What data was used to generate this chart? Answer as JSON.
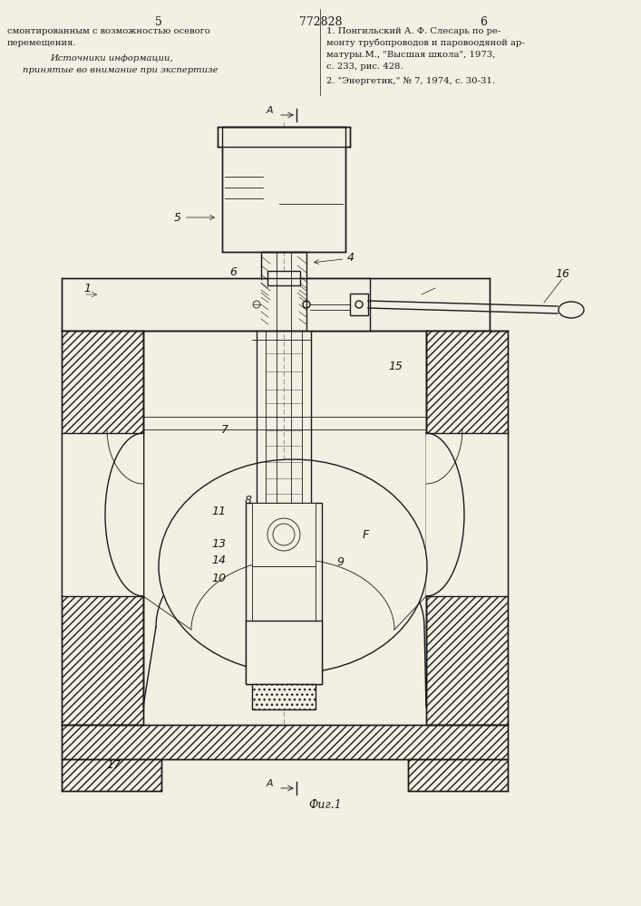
{
  "page_number_left": "5",
  "page_number_center": "772828",
  "page_number_right": "6",
  "text_left_1": "смонтированным с возможностью осевого",
  "text_left_2": "перемещения.",
  "text_left_3": "Источники информации,",
  "text_left_4": "принятые во внимание при экспертизе",
  "text_right_1": "1. Понгильский А. Ф. Слесарь по ре-",
  "text_right_2": "монту трубопроводов и паровоодяной ар-",
  "text_right_3": "матуры.М., \"Высшая школа\", 1973,",
  "text_right_4": "с. 233, рис. 428.",
  "text_right_5": "2. \"Энергетик,\" № 7, 1974, с. 30-31.",
  "fig_label": "Фиг.1",
  "bg_color": "#f2efe3",
  "line_color": "#1a1a1a"
}
